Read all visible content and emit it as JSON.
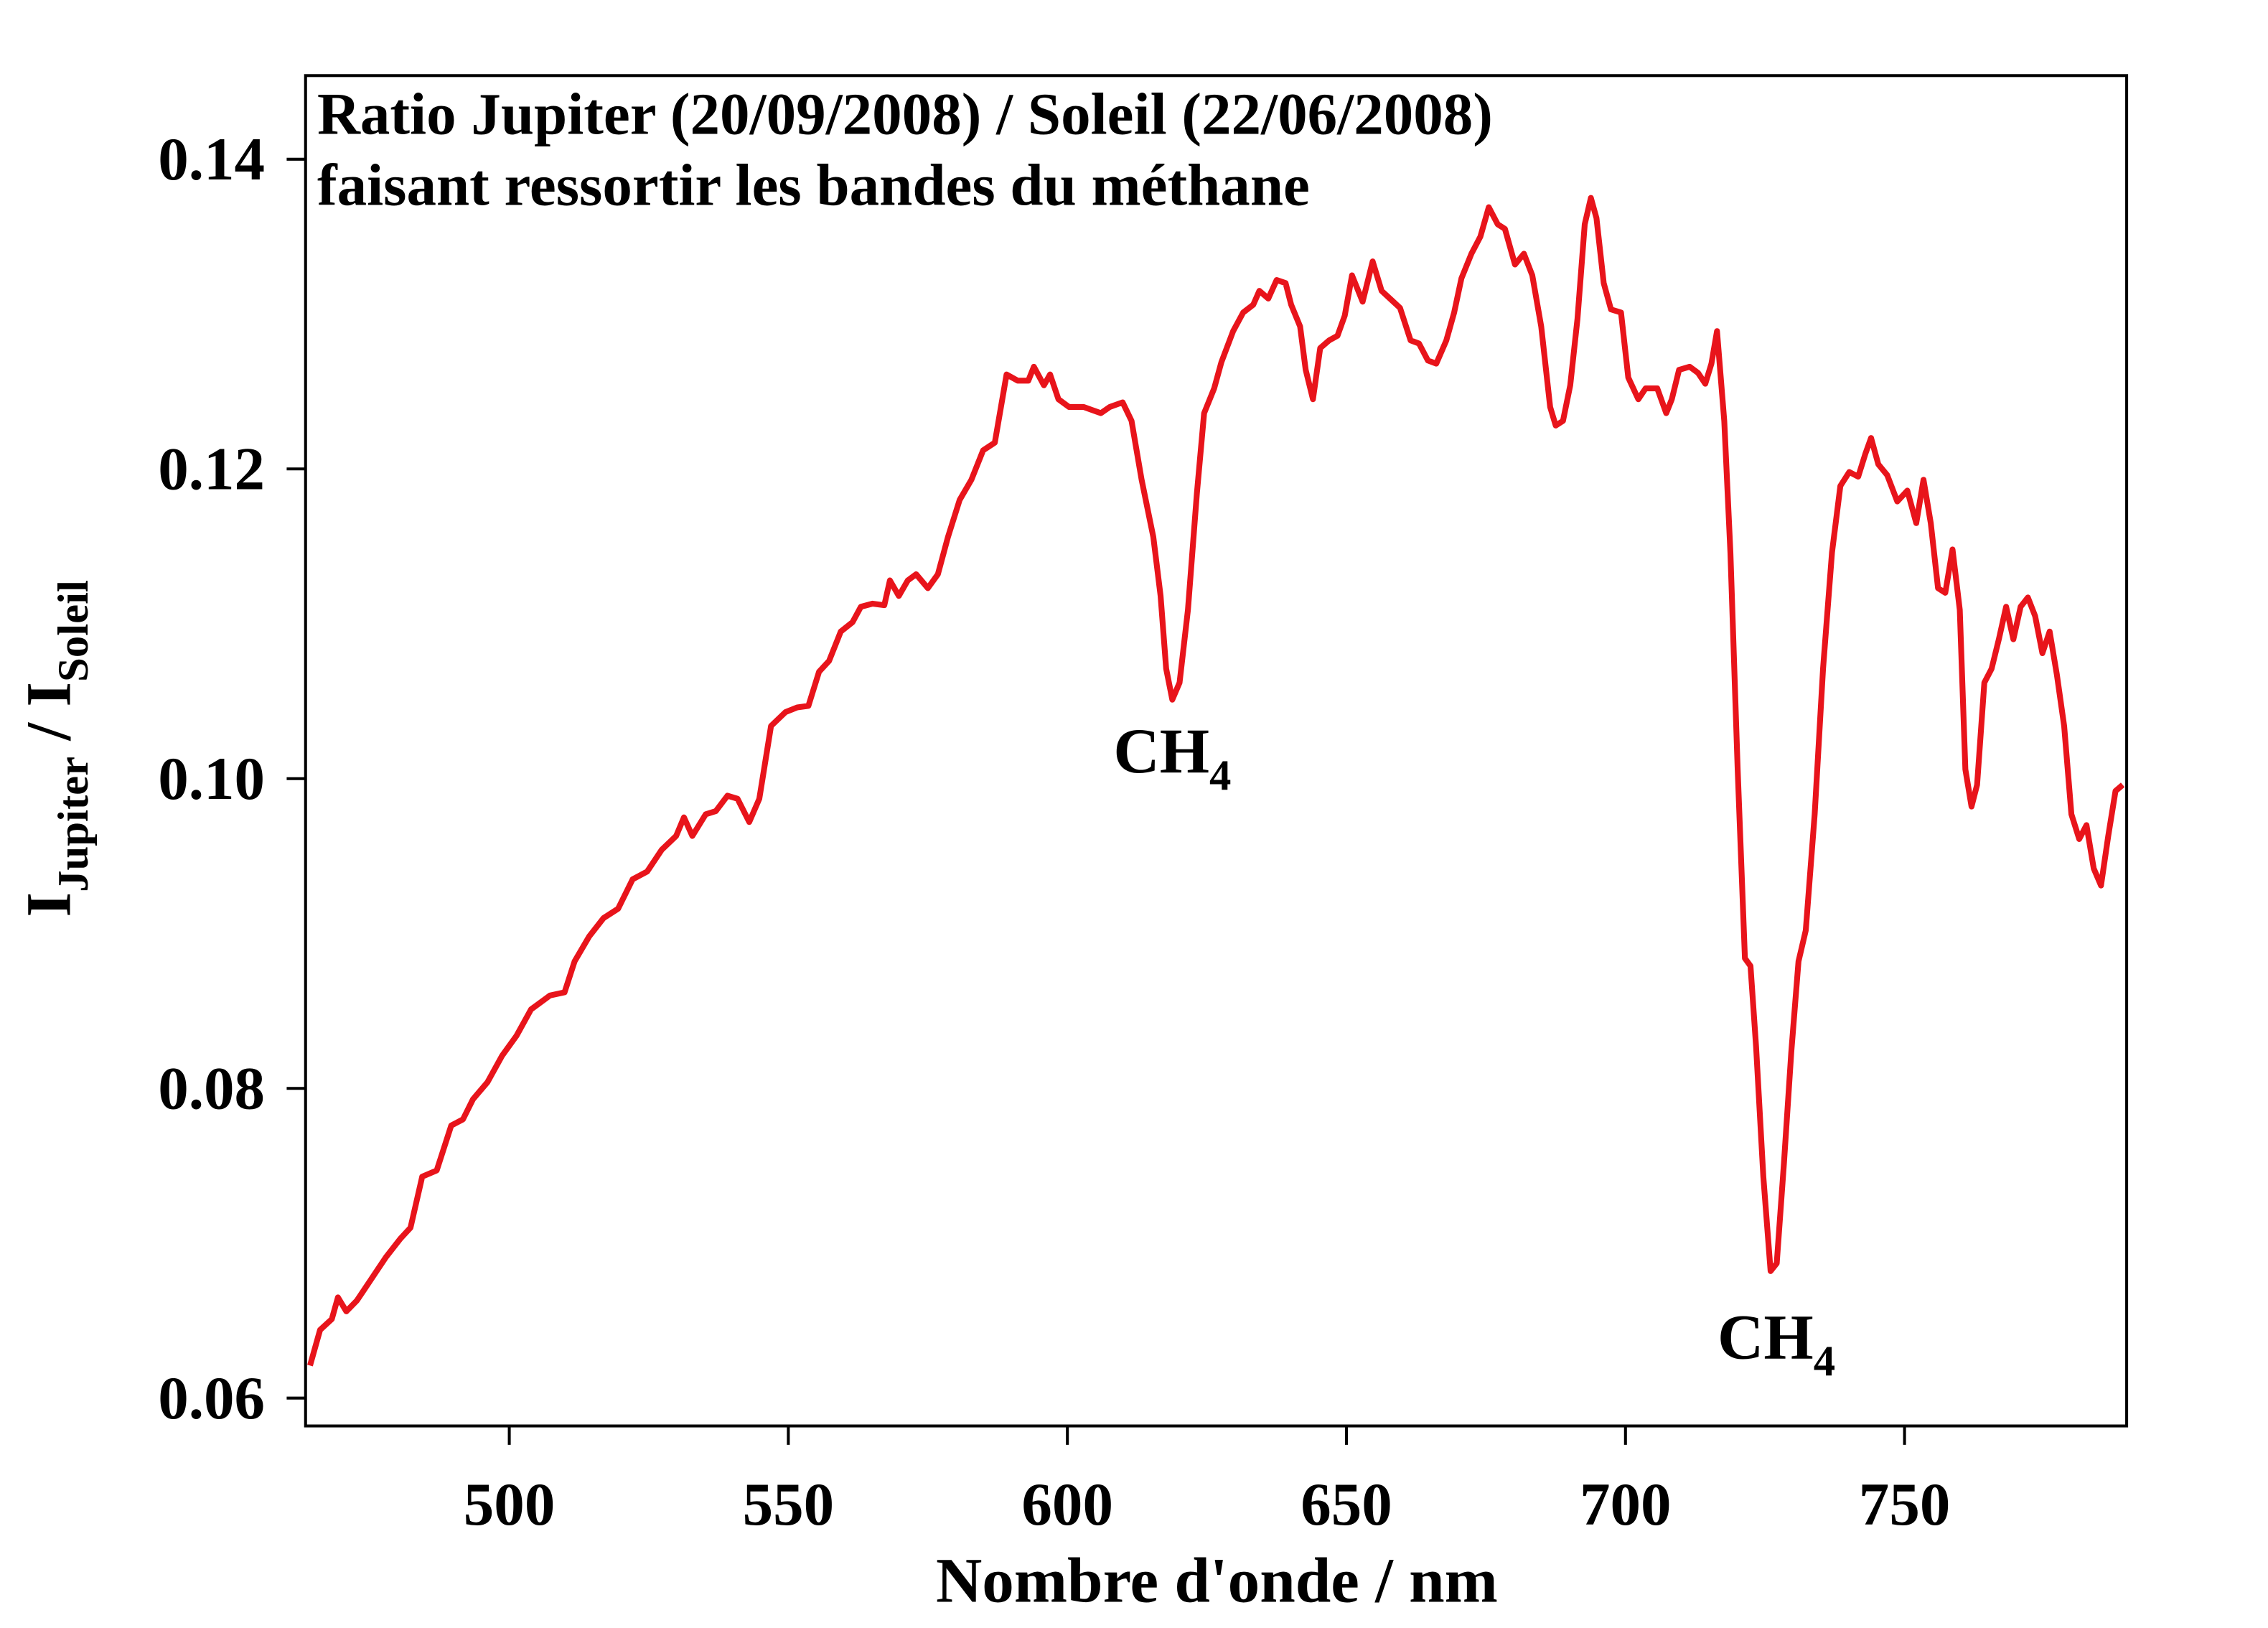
{
  "chart_data": {
    "type": "line",
    "title": [
      "Ratio Jupiter (20/09/2008) / Soleil (22/06/2008)",
      "faisant ressortir les bandes du méthane"
    ],
    "xlabel": "Nombre d'onde / nm",
    "ylabel": [
      "I",
      "Jupiter",
      " / I",
      "Soleil"
    ],
    "annotations": [
      {
        "text": "CH",
        "sub": "4",
        "x": 618.8,
        "y": 0.1051
      },
      {
        "text": "CH",
        "sub": "4",
        "x": 726.0,
        "y": 0.0682
      }
    ],
    "xlim": [
      463.5,
      789.8
    ],
    "ylim": [
      0.0582,
      0.1454
    ],
    "xticks": [
      500,
      550,
      600,
      650,
      700,
      750
    ],
    "yticks": [
      0.06,
      0.08,
      {
        "value": 0.1,
        "label": "0.10"
      },
      0.12,
      0.14
    ],
    "grid": false,
    "x": [
      464.3,
      466.1,
      468.2,
      469.3,
      470.8,
      472.7,
      475.3,
      477.9,
      480.5,
      482.3,
      484.4,
      487.0,
      489.6,
      491.7,
      493.5,
      496.1,
      498.7,
      501.3,
      503.9,
      507.3,
      509.9,
      511.7,
      514.3,
      516.9,
      519.5,
      522.1,
      524.7,
      527.3,
      529.9,
      531.3,
      532.8,
      535.2,
      537.0,
      539.1,
      540.9,
      543.0,
      544.8,
      546.9,
      549.5,
      551.6,
      553.6,
      555.5,
      557.3,
      559.4,
      561.5,
      563.0,
      565.1,
      567.2,
      568.2,
      569.8,
      571.4,
      572.9,
      575.0,
      576.8,
      578.6,
      580.7,
      582.8,
      584.9,
      587.0,
      589.1,
      591.1,
      593.0,
      594.0,
      595.8,
      596.9,
      598.4,
      600.3,
      602.9,
      606.0,
      607.6,
      609.9,
      611.5,
      613.3,
      615.4,
      616.7,
      617.7,
      618.8,
      620.1,
      621.6,
      623.2,
      624.5,
      626.3,
      627.6,
      629.7,
      631.5,
      633.3,
      634.4,
      636.0,
      637.5,
      639.1,
      640.1,
      641.7,
      642.7,
      644.0,
      645.3,
      646.9,
      648.4,
      649.7,
      651.0,
      652.9,
      654.7,
      656.3,
      658.1,
      659.6,
      661.5,
      663.0,
      664.6,
      666.1,
      667.9,
      669.3,
      670.6,
      672.4,
      674.0,
      675.5,
      677.1,
      678.4,
      680.2,
      681.8,
      683.3,
      684.9,
      686.5,
      687.5,
      688.8,
      690.1,
      691.4,
      692.7,
      693.8,
      694.8,
      696.1,
      697.4,
      699.2,
      700.5,
      702.3,
      703.6,
      705.7,
      707.3,
      708.3,
      709.6,
      711.5,
      713.0,
      714.3,
      715.4,
      716.4,
      717.7,
      718.8,
      720.1,
      721.4,
      722.4,
      723.4,
      724.7,
      726.0,
      727.1,
      728.4,
      729.7,
      731.0,
      732.3,
      733.9,
      735.4,
      737.0,
      738.5,
      740.1,
      741.7,
      743.0,
      744.0,
      745.3,
      746.9,
      748.7,
      750.5,
      752.1,
      753.4,
      754.7,
      756.0,
      757.3,
      758.6,
      759.9,
      760.9,
      762.0,
      763.0,
      764.3,
      765.6,
      766.9,
      768.2,
      769.5,
      770.8,
      772.1,
      773.4,
      774.7,
      776.0,
      777.3,
      778.6,
      779.9,
      781.3,
      782.6,
      783.9,
      785.2,
      786.5,
      787.8,
      789.1
    ],
    "series": [
      {
        "name": "Ratio",
        "color": "#e8141b",
        "values": [
          0.0621,
          0.0644,
          0.0651,
          0.0665,
          0.0656,
          0.0663,
          0.0677,
          0.0691,
          0.0703,
          0.071,
          0.0743,
          0.0747,
          0.0776,
          0.078,
          0.0793,
          0.0804,
          0.0821,
          0.0834,
          0.0851,
          0.086,
          0.0862,
          0.0882,
          0.0898,
          0.091,
          0.0916,
          0.0935,
          0.094,
          0.0954,
          0.0963,
          0.0975,
          0.0963,
          0.0977,
          0.0979,
          0.0989,
          0.0987,
          0.0972,
          0.0987,
          0.1034,
          0.1043,
          0.1046,
          0.1047,
          0.1069,
          0.1076,
          0.1095,
          0.1101,
          0.1111,
          0.1113,
          0.1112,
          0.1128,
          0.1118,
          0.1128,
          0.1132,
          0.1123,
          0.1132,
          0.1156,
          0.118,
          0.1193,
          0.1212,
          0.1217,
          0.1261,
          0.1257,
          0.1257,
          0.1266,
          0.1254,
          0.1261,
          0.1245,
          0.124,
          0.124,
          0.1236,
          0.124,
          0.1243,
          0.1231,
          0.1193,
          0.1156,
          0.1118,
          0.1071,
          0.1051,
          0.1062,
          0.1109,
          0.1184,
          0.1236,
          0.1252,
          0.1269,
          0.1289,
          0.1301,
          0.1306,
          0.1315,
          0.131,
          0.1322,
          0.132,
          0.1306,
          0.1292,
          0.1264,
          0.1245,
          0.1278,
          0.1283,
          0.1286,
          0.1299,
          0.1325,
          0.1308,
          0.1334,
          0.1315,
          0.1309,
          0.1304,
          0.1283,
          0.1281,
          0.127,
          0.1268,
          0.1283,
          0.1301,
          0.1323,
          0.1339,
          0.135,
          0.1369,
          0.1358,
          0.1355,
          0.1332,
          0.1339,
          0.1325,
          0.1292,
          0.124,
          0.1228,
          0.1231,
          0.1254,
          0.1297,
          0.1358,
          0.1375,
          0.1362,
          0.132,
          0.1303,
          0.1301,
          0.1259,
          0.1245,
          0.1252,
          0.1252,
          0.1236,
          0.1245,
          0.1264,
          0.1266,
          0.1262,
          0.1255,
          0.1268,
          0.1289,
          0.1231,
          0.1146,
          0.1006,
          0.0884,
          0.0879,
          0.0827,
          0.0743,
          0.0682,
          0.0687,
          0.0752,
          0.0823,
          0.0882,
          0.0902,
          0.0977,
          0.1071,
          0.1146,
          0.1189,
          0.1198,
          0.1195,
          0.121,
          0.122,
          0.1203,
          0.1196,
          0.1179,
          0.1186,
          0.1165,
          0.1193,
          0.1165,
          0.1123,
          0.112,
          0.1148,
          0.1109,
          0.1006,
          0.0982,
          0.0996,
          0.1062,
          0.1071,
          0.109,
          0.1111,
          0.109,
          0.1111,
          0.1117,
          0.1105,
          0.1081,
          0.1095,
          0.1067,
          0.1034,
          0.0977,
          0.0961,
          0.097,
          0.0942,
          0.0931,
          0.0963,
          0.0992,
          0.0996
        ]
      }
    ]
  }
}
